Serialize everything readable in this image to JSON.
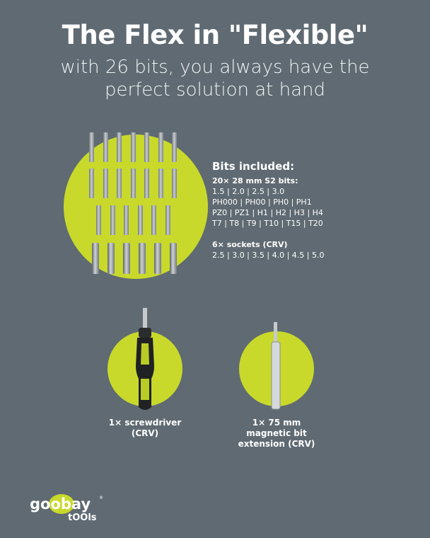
{
  "header": {
    "title": "The Flex in \"Flexible\"",
    "subtitle_line1": "with 26 bits, you always have the",
    "subtitle_line2": "perfect solution at hand"
  },
  "bits_info": {
    "heading": "Bits included:",
    "bits_title": "20× 28 mm S2 bits:",
    "bits_lines": [
      "1.5 | 2.0 | 2.5 | 3.0",
      "PH000 | PH00 | PH0 | PH1",
      "PZ0 | PZ1 | H1 | H2 | H3 | H4",
      "T7 | T8 | T9 | T10 | T15 | T20"
    ],
    "sockets_title": "6× sockets (CRV)",
    "sockets_line": "2.5 | 3.0 | 3.5 | 4.0 | 4.5 | 5.0"
  },
  "items": [
    {
      "line1": "1× screwdriver",
      "line2": "(CRV)"
    },
    {
      "line1": "1× 75 mm",
      "line2": "magnetic bit",
      "line3": "extension (CRV)"
    }
  ],
  "logo": {
    "brand": "goobay",
    "sub": "tOOls"
  },
  "colors": {
    "background": "#5f6a72",
    "accent": "#c8d92b"
  }
}
